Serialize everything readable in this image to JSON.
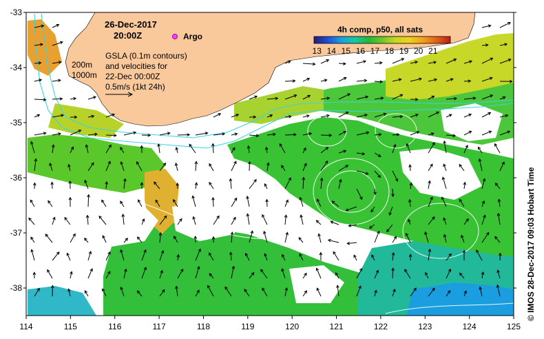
{
  "map": {
    "date": "26-Dec-2017",
    "time": "20:00Z",
    "argo_label": "Argo",
    "gsla_lines": [
      "GSLA (0.1m contours)",
      "and velocities for",
      "22-Dec 00:00Z",
      "0.5m/s (1kt 24h)"
    ],
    "depth_labels": [
      "200m",
      "1000m"
    ],
    "colorbar_title": "4h comp, p50, all sats",
    "colorbar_ticks": [
      "13",
      "14",
      "15",
      "16",
      "17",
      "18",
      "19",
      "20",
      "21"
    ],
    "colorbar_colors": [
      "#2a1a7a",
      "#1e4fd8",
      "#1aa0e0",
      "#18c8a0",
      "#22b83a",
      "#6cc82a",
      "#c8d81e",
      "#f0d01e",
      "#f0a01a",
      "#e06018",
      "#c02010"
    ],
    "lon_ticks": [
      "114",
      "115",
      "116",
      "117",
      "118",
      "119",
      "120",
      "121",
      "122",
      "123",
      "124",
      "125"
    ],
    "lat_ticks": [
      "-33",
      "-34",
      "-35",
      "-36",
      "-37",
      "-38"
    ],
    "lon_range": [
      114,
      125
    ],
    "lat_range": [
      -38.5,
      -33
    ],
    "credit": "© IMOS 28-Dec-2017 09:03 Hobart Time",
    "land_color": "#f9c99c",
    "bathymetry_color": "#33d6e8"
  }
}
